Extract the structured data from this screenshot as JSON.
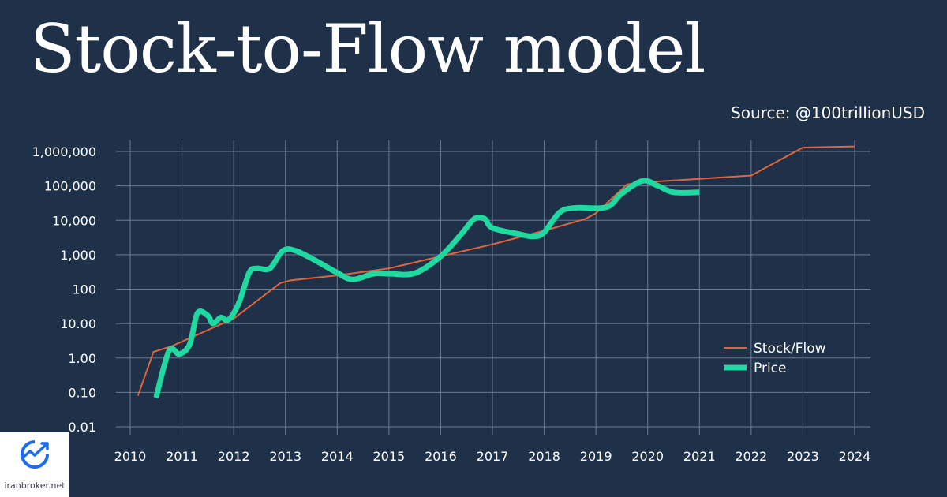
{
  "title": "Stock-to-Flow model",
  "source": "Source: @100trillionUSD",
  "logo": {
    "text": "iranbroker.net",
    "icon": "trend-up-icon"
  },
  "chart_data": {
    "type": "line",
    "title": "Stock-to-Flow model",
    "xlabel": "",
    "ylabel": "",
    "yscale": "log",
    "ylim": [
      0.01,
      1000000
    ],
    "xlim": [
      2010,
      2024
    ],
    "y_ticks": [
      {
        "value": 1000000,
        "label": "1,000,000"
      },
      {
        "value": 100000,
        "label": "100,000"
      },
      {
        "value": 10000,
        "label": "10,000"
      },
      {
        "value": 1000,
        "label": "1,000"
      },
      {
        "value": 100,
        "label": "100"
      },
      {
        "value": 10,
        "label": "10.00"
      },
      {
        "value": 1,
        "label": "1.00"
      },
      {
        "value": 0.1,
        "label": "0.10"
      },
      {
        "value": 0.01,
        "label": "0.01"
      }
    ],
    "x_ticks": [
      {
        "value": 2010,
        "label": "2010"
      },
      {
        "value": 2011,
        "label": "2011"
      },
      {
        "value": 2012,
        "label": "2012"
      },
      {
        "value": 2013,
        "label": "2013"
      },
      {
        "value": 2014,
        "label": "2014"
      },
      {
        "value": 2015,
        "label": "2015"
      },
      {
        "value": 2016,
        "label": "2016"
      },
      {
        "value": 2017,
        "label": "2017"
      },
      {
        "value": 2018,
        "label": "2018"
      },
      {
        "value": 2019,
        "label": "2019"
      },
      {
        "value": 2020,
        "label": "2020"
      },
      {
        "value": 2021,
        "label": "2021"
      },
      {
        "value": 2022,
        "label": "2022"
      },
      {
        "value": 2023,
        "label": "2023"
      },
      {
        "value": 2024,
        "label": "2024"
      }
    ],
    "grid": true,
    "legend": "bottom-right",
    "series": [
      {
        "name": "Stock/Flow",
        "color": "#e0643c",
        "points": [
          [
            2010.15,
            0.08
          ],
          [
            2010.45,
            1.5
          ],
          [
            2010.8,
            2.2
          ],
          [
            2012.0,
            14
          ],
          [
            2012.9,
            150
          ],
          [
            2013.1,
            180
          ],
          [
            2014.0,
            250
          ],
          [
            2015.0,
            400
          ],
          [
            2016.0,
            900
          ],
          [
            2017.0,
            2000
          ],
          [
            2018.0,
            5000
          ],
          [
            2018.8,
            11000
          ],
          [
            2019.0,
            16000
          ],
          [
            2019.6,
            110000
          ],
          [
            2020.0,
            130000
          ],
          [
            2021.0,
            160000
          ],
          [
            2022.0,
            200000
          ],
          [
            2023.0,
            1300000
          ],
          [
            2024.0,
            1400000
          ]
        ]
      },
      {
        "name": "Price",
        "color": "#1fd9a0",
        "points": [
          [
            2010.5,
            0.07
          ],
          [
            2010.75,
            1.6
          ],
          [
            2010.95,
            1.3
          ],
          [
            2011.15,
            2.5
          ],
          [
            2011.3,
            20
          ],
          [
            2011.5,
            17
          ],
          [
            2011.6,
            10
          ],
          [
            2011.75,
            15
          ],
          [
            2011.9,
            13
          ],
          [
            2012.1,
            40
          ],
          [
            2012.3,
            300
          ],
          [
            2012.45,
            400
          ],
          [
            2012.7,
            400
          ],
          [
            2012.95,
            1300
          ],
          [
            2013.2,
            1300
          ],
          [
            2013.6,
            650
          ],
          [
            2014.0,
            300
          ],
          [
            2014.3,
            190
          ],
          [
            2014.7,
            280
          ],
          [
            2015.0,
            280
          ],
          [
            2015.5,
            290
          ],
          [
            2016.0,
            900
          ],
          [
            2016.4,
            4000
          ],
          [
            2016.65,
            11000
          ],
          [
            2016.85,
            11000
          ],
          [
            2017.0,
            6000
          ],
          [
            2017.5,
            4000
          ],
          [
            2017.8,
            3400
          ],
          [
            2018.0,
            4500
          ],
          [
            2018.3,
            17000
          ],
          [
            2018.6,
            23000
          ],
          [
            2019.2,
            24000
          ],
          [
            2019.5,
            60000
          ],
          [
            2019.9,
            140000
          ],
          [
            2020.2,
            100000
          ],
          [
            2020.5,
            65000
          ],
          [
            2021.0,
            65000
          ]
        ]
      }
    ]
  }
}
